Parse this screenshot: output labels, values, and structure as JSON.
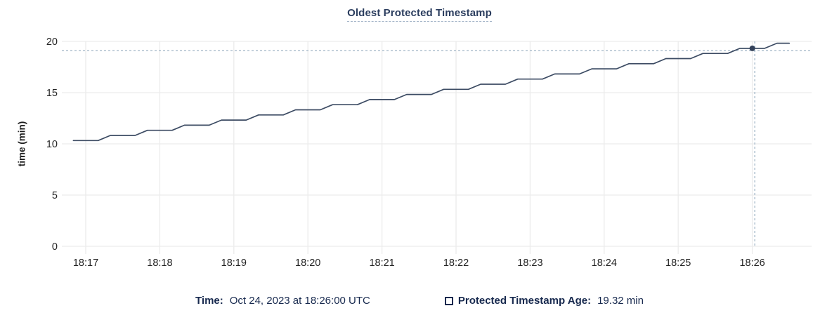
{
  "title": "Oldest Protected Timestamp",
  "chart_data": {
    "type": "line",
    "title": "Oldest Protected Timestamp",
    "xlabel": "",
    "ylabel": "time (min)",
    "ylim": [
      0,
      20
    ],
    "grid": true,
    "y_ticks": [
      0,
      5,
      10,
      15,
      20
    ],
    "y_tick_labels": [
      "0",
      "5",
      "10",
      "15",
      "20"
    ],
    "x_tick_labels": [
      "18:17",
      "18:18",
      "18:19",
      "18:20",
      "18:21",
      "18:22",
      "18:23",
      "18:24",
      "18:25",
      "18:26"
    ],
    "series": [
      {
        "name": "Protected Timestamp Age",
        "unit": "min",
        "start_time": "18:16:50",
        "interval_seconds": 10,
        "values": [
          10.32,
          10.32,
          10.32,
          10.82,
          10.82,
          10.82,
          11.32,
          11.32,
          11.32,
          11.82,
          11.82,
          11.82,
          12.32,
          12.32,
          12.32,
          12.82,
          12.82,
          12.82,
          13.32,
          13.32,
          13.32,
          13.82,
          13.82,
          13.82,
          14.32,
          14.32,
          14.32,
          14.82,
          14.82,
          14.82,
          15.32,
          15.32,
          15.32,
          15.82,
          15.82,
          15.82,
          16.32,
          16.32,
          16.32,
          16.82,
          16.82,
          16.82,
          17.32,
          17.32,
          17.32,
          17.82,
          17.82,
          17.82,
          18.32,
          18.32,
          18.32,
          18.82,
          18.82,
          18.82,
          19.32,
          19.32,
          19.32,
          19.82,
          19.82
        ]
      }
    ],
    "hover": {
      "point_time": "18:26:00",
      "point_value": 19.32,
      "crosshair_time": "18:26:02",
      "crosshair_value": 19.1
    }
  },
  "legend": {
    "time_label": "Time:",
    "time_value": "Oct 24, 2023 at 18:26:00 UTC",
    "series_label": "Protected Timestamp Age:",
    "series_value": "19.32 min"
  },
  "colors": {
    "line": "#3c4b63",
    "grid": "#ececec",
    "crosshair": "#9fb4c6",
    "title_text": "#2b3d5e",
    "legend_text": "#17294e",
    "tick_text": "#242424",
    "hover_point": "#34425a"
  }
}
